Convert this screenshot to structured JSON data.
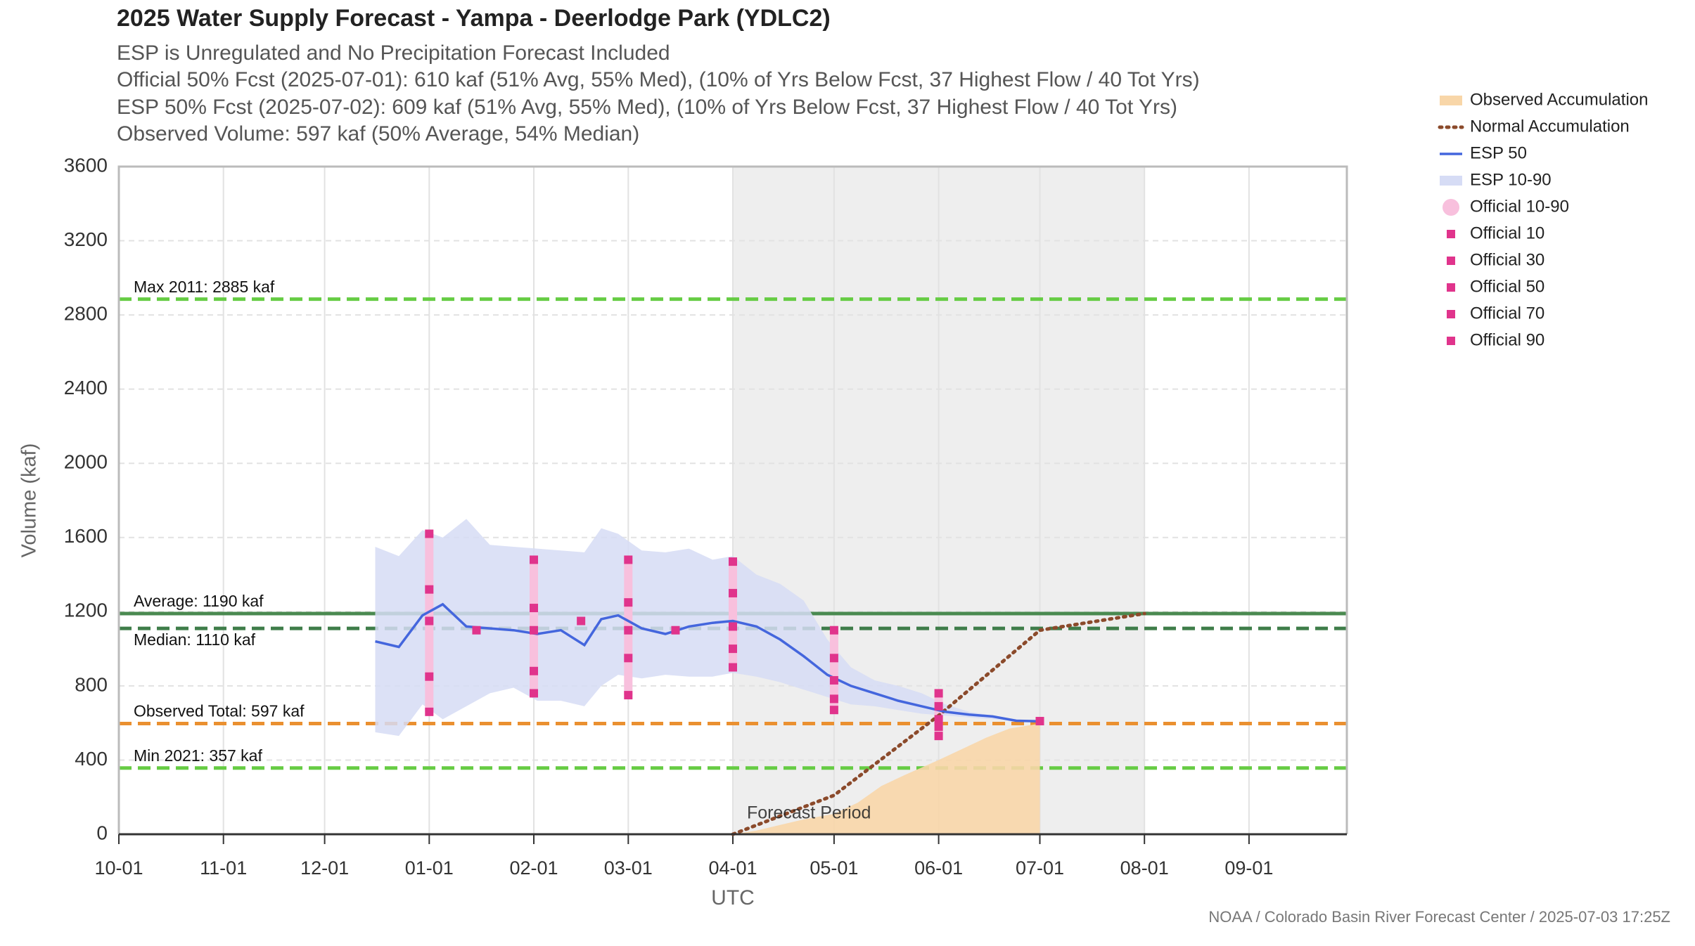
{
  "chart_data": {
    "type": "line",
    "title": "2025 Water Supply Forecast - Yampa - Deerlodge Park (YDLC2)",
    "subtitle": [
      "ESP is Unregulated and No Precipitation Forecast Included",
      "Official 50% Fcst (2025-07-01): 610 kaf (51% Avg, 55% Med), (10% of Yrs Below Fcst, 37 Highest Flow / 40 Tot Yrs)",
      "ESP 50% Fcst (2025-07-02): 609 kaf (51% Avg, 55% Med), (10% of Yrs Below Fcst, 37 Highest Flow / 40 Tot Yrs)",
      "Observed Volume: 597 kaf (50% Average, 54% Median)"
    ],
    "y_label": "Volume (kaf)",
    "x_label": "UTC",
    "footer": "NOAA / Colorado Basin River Forecast Center / 2025-07-03 17:25Z",
    "xlim": [
      "10-01",
      "09-30"
    ],
    "xticks": [
      "10-01",
      "11-01",
      "12-01",
      "01-01",
      "02-01",
      "03-01",
      "04-01",
      "05-01",
      "06-01",
      "07-01",
      "08-01",
      "09-01"
    ],
    "ylim": [
      0,
      3600
    ],
    "yticks": [
      0,
      400,
      800,
      1200,
      1600,
      2000,
      2400,
      2800,
      3200,
      3600
    ],
    "grid": true,
    "shaded_region": {
      "label": "Forecast Period",
      "x": [
        "04-01",
        "08-01"
      ],
      "color": "#eeeeee"
    },
    "reference_lines": [
      {
        "label": "Max 2011: 2885 kaf",
        "value": 2885,
        "color": "#66cc44",
        "style": "dashed",
        "label_position": "above"
      },
      {
        "label": "Average: 1190 kaf",
        "value": 1190,
        "color": "#4a8a50",
        "style": "solid",
        "label_position": "above"
      },
      {
        "label": "Median: 1110 kaf",
        "value": 1110,
        "color": "#3f7d4a",
        "style": "dashed",
        "label_position": "below"
      },
      {
        "label": "Observed Total: 597 kaf",
        "value": 597,
        "color": "#ea9030",
        "style": "dashed",
        "label_position": "above"
      },
      {
        "label": "Min 2021: 357 kaf",
        "value": 357,
        "color": "#66cc44",
        "style": "dashed",
        "label_position": "above"
      }
    ],
    "series": [
      {
        "name": "Observed Accumulation",
        "kind": "area",
        "color": "#f8d6a8",
        "x": [
          "04-01",
          "04-08",
          "04-15",
          "04-22",
          "05-01",
          "05-08",
          "05-15",
          "05-22",
          "06-01",
          "06-08",
          "06-15",
          "06-22",
          "07-01"
        ],
        "values": [
          0,
          20,
          50,
          80,
          110,
          170,
          260,
          320,
          400,
          460,
          520,
          570,
          597
        ]
      },
      {
        "name": "Normal Accumulation",
        "kind": "dotted",
        "color": "#8b4a2b",
        "x": [
          "04-01",
          "05-01",
          "06-01",
          "07-01",
          "08-01"
        ],
        "values": [
          0,
          210,
          640,
          1100,
          1190
        ]
      },
      {
        "name": "ESP 50",
        "kind": "line",
        "color": "#4466dd",
        "x": [
          "12-16",
          "12-23",
          "12-30",
          "01-05",
          "01-12",
          "01-19",
          "01-26",
          "02-02",
          "02-09",
          "02-16",
          "02-21",
          "02-26",
          "03-05",
          "03-12",
          "03-19",
          "03-26",
          "04-01",
          "04-08",
          "04-15",
          "04-22",
          "04-29",
          "05-06",
          "05-13",
          "05-20",
          "05-27",
          "06-03",
          "06-10",
          "06-17",
          "06-24",
          "07-01"
        ],
        "values": [
          1040,
          1010,
          1180,
          1240,
          1120,
          1110,
          1100,
          1080,
          1100,
          1020,
          1160,
          1180,
          1110,
          1080,
          1120,
          1140,
          1150,
          1120,
          1050,
          960,
          860,
          800,
          760,
          720,
          690,
          660,
          645,
          635,
          612,
          609
        ]
      },
      {
        "name": "ESP 10-90",
        "kind": "band",
        "color": "#d6dcf5",
        "x": [
          "12-16",
          "12-23",
          "12-30",
          "01-05",
          "01-12",
          "01-19",
          "01-26",
          "02-02",
          "02-09",
          "02-16",
          "02-21",
          "02-26",
          "03-05",
          "03-12",
          "03-19",
          "03-26",
          "04-01",
          "04-08",
          "04-15",
          "04-22",
          "04-29",
          "05-06",
          "05-13",
          "05-20",
          "05-27",
          "06-03",
          "06-10",
          "06-17",
          "06-24",
          "07-01"
        ],
        "low": [
          550,
          530,
          700,
          620,
          690,
          760,
          790,
          720,
          720,
          690,
          800,
          860,
          840,
          860,
          850,
          850,
          870,
          850,
          820,
          780,
          740,
          700,
          690,
          670,
          650,
          640,
          630,
          620,
          610,
          609
        ],
        "high": [
          1550,
          1500,
          1640,
          1600,
          1700,
          1560,
          1550,
          1540,
          1530,
          1520,
          1650,
          1620,
          1530,
          1520,
          1540,
          1480,
          1500,
          1400,
          1350,
          1260,
          1050,
          900,
          830,
          800,
          760,
          700,
          660,
          640,
          620,
          609
        ]
      },
      {
        "name": "Official 10-90",
        "kind": "range",
        "color": "#f8c0dd"
      },
      {
        "name": "Official 10",
        "kind": "marker",
        "color": "#e0348c",
        "x": [
          "01-01",
          "02-01",
          "03-01",
          "04-01",
          "05-01",
          "06-01"
        ],
        "values": [
          660,
          760,
          750,
          900,
          670,
          530
        ]
      },
      {
        "name": "Official 30",
        "kind": "marker",
        "color": "#e0348c",
        "x": [
          "01-01",
          "02-01",
          "03-01",
          "04-01",
          "05-01",
          "06-01"
        ],
        "values": [
          850,
          880,
          950,
          1000,
          730,
          580
        ]
      },
      {
        "name": "Official 50",
        "kind": "marker",
        "color": "#e0348c",
        "x": [
          "01-01",
          "01-15",
          "02-01",
          "02-15",
          "03-01",
          "03-15",
          "04-01",
          "05-01",
          "06-01",
          "07-01"
        ],
        "values": [
          1150,
          1100,
          1100,
          1150,
          1100,
          1100,
          1120,
          830,
          620,
          610
        ]
      },
      {
        "name": "Official 70",
        "kind": "marker",
        "color": "#e0348c",
        "x": [
          "01-01",
          "02-01",
          "03-01",
          "04-01",
          "05-01",
          "06-01"
        ],
        "values": [
          1320,
          1220,
          1250,
          1300,
          950,
          690
        ]
      },
      {
        "name": "Official 90",
        "kind": "marker",
        "color": "#e0348c",
        "x": [
          "01-01",
          "02-01",
          "03-01",
          "04-01",
          "05-01",
          "06-01"
        ],
        "values": [
          1620,
          1480,
          1480,
          1470,
          1100,
          760
        ]
      }
    ]
  }
}
